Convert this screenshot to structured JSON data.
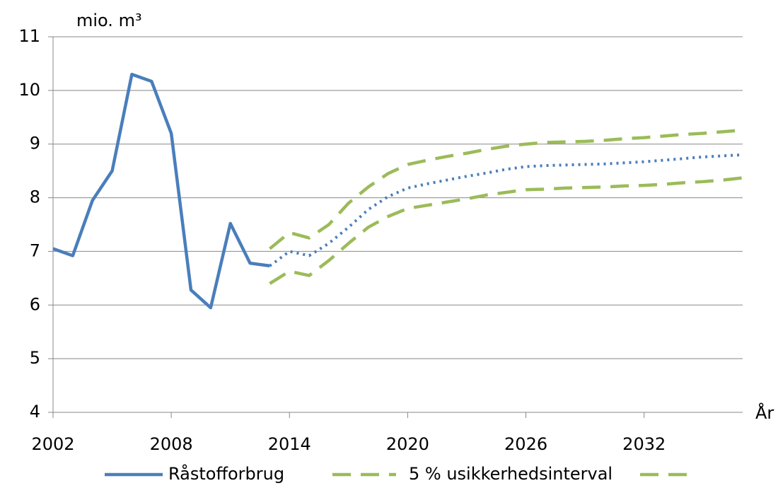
{
  "chart_data": {
    "type": "line",
    "y_unit_label": "mio. m³",
    "x_axis_label": "År",
    "x": [
      2002,
      2003,
      2004,
      2005,
      2006,
      2007,
      2008,
      2009,
      2010,
      2011,
      2012,
      2013,
      2014,
      2015,
      2016,
      2017,
      2018,
      2019,
      2020,
      2021,
      2022,
      2023,
      2024,
      2025,
      2026,
      2027,
      2028,
      2029,
      2030,
      2031,
      2032,
      2033,
      2034,
      2035,
      2036,
      2037
    ],
    "xlim": [
      2002,
      2037
    ],
    "xticks": [
      2002,
      2008,
      2014,
      2020,
      2026,
      2032
    ],
    "ylim": [
      4,
      11
    ],
    "yticks": [
      4,
      5,
      6,
      7,
      8,
      9,
      10,
      11
    ],
    "grid": true,
    "legend": "bottom",
    "series": [
      {
        "name": "Råstofforbrug",
        "color": "#4a7ebb",
        "dash": "solid",
        "values": [
          7.05,
          6.92,
          7.95,
          8.5,
          10.3,
          10.17,
          9.2,
          6.28,
          5.95,
          7.52,
          6.78,
          6.73,
          null,
          null,
          null,
          null,
          null,
          null,
          null,
          null,
          null,
          null,
          null,
          null,
          null,
          null,
          null,
          null,
          null,
          null,
          null,
          null,
          null,
          null,
          null,
          null
        ]
      },
      {
        "name": "5 % usikkerhedsinterval",
        "color": "#9bbb59",
        "dash": "dashed",
        "values": [
          null,
          null,
          null,
          null,
          null,
          null,
          null,
          null,
          null,
          null,
          null,
          7.05,
          7.35,
          7.25,
          7.5,
          7.9,
          8.2,
          8.45,
          8.62,
          8.7,
          8.77,
          8.83,
          8.9,
          8.96,
          9.0,
          9.03,
          9.04,
          9.05,
          9.07,
          9.1,
          9.12,
          9.15,
          9.18,
          9.2,
          9.23,
          9.26
        ]
      },
      {
        "color": "#9bbb59",
        "dash": "dashed",
        "values": [
          null,
          null,
          null,
          null,
          null,
          null,
          null,
          null,
          null,
          null,
          null,
          6.4,
          6.63,
          6.55,
          6.83,
          7.15,
          7.45,
          7.65,
          7.8,
          7.86,
          7.92,
          7.98,
          8.05,
          8.1,
          8.15,
          8.16,
          8.18,
          8.19,
          8.2,
          8.22,
          8.23,
          8.25,
          8.28,
          8.3,
          8.33,
          8.37
        ]
      },
      {
        "color": "#4a7ebb",
        "dash": "dotted",
        "values": [
          null,
          null,
          null,
          null,
          null,
          null,
          null,
          null,
          null,
          null,
          null,
          6.73,
          7.0,
          6.92,
          7.15,
          7.45,
          7.78,
          8.02,
          8.18,
          8.26,
          8.33,
          8.4,
          8.46,
          8.53,
          8.58,
          8.6,
          8.61,
          8.62,
          8.63,
          8.65,
          8.67,
          8.7,
          8.73,
          8.76,
          8.78,
          8.8
        ]
      }
    ]
  }
}
